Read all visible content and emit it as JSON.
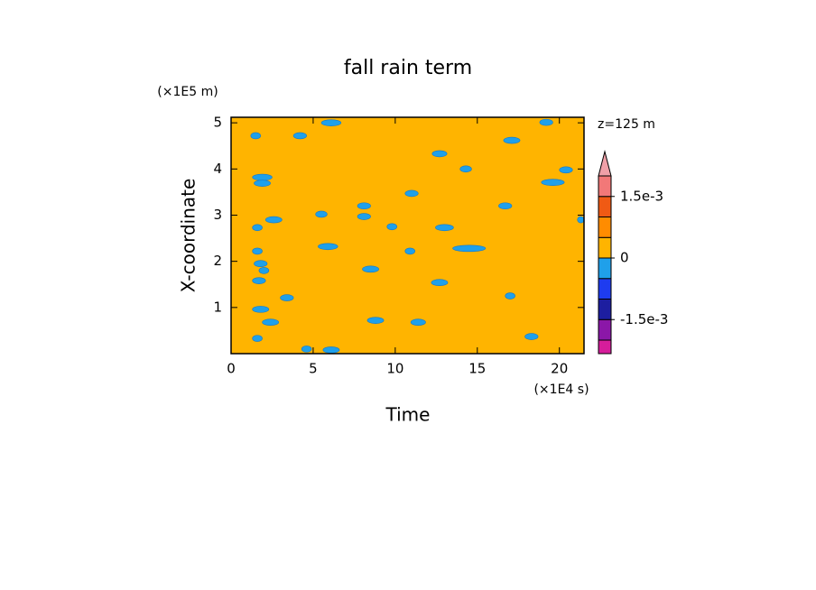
{
  "chart_data": {
    "type": "contour",
    "title": "fall rain term",
    "xlabel": "Time",
    "ylabel": "X-coordinate",
    "x_unit": "(×1E4 s)",
    "y_unit": "(×1E5 m)",
    "annotation": "z=125 m",
    "xlim": [
      0,
      21.5
    ],
    "ylim": [
      0,
      5.12
    ],
    "xticks": [
      0,
      5,
      10,
      15,
      20
    ],
    "yticks": [
      1,
      2,
      3,
      4,
      5
    ],
    "background_level": 5,
    "patch_level": 4,
    "patches": {
      "x": [
        1.5,
        1.9,
        1.9,
        1.6,
        2.6,
        1.6,
        1.8,
        2.0,
        1.7,
        3.4,
        1.8,
        2.4,
        1.6,
        4.2,
        6.1,
        5.5,
        5.9,
        4.6,
        6.1,
        8.1,
        8.1,
        8.5,
        8.8,
        9.8,
        11.0,
        11.4,
        12.7,
        13.0,
        12.7,
        14.3,
        14.5,
        17.1,
        16.7,
        17.0,
        18.3,
        19.2,
        19.6,
        20.4,
        21.3,
        10.9
      ],
      "y": [
        4.72,
        3.82,
        3.69,
        2.73,
        2.9,
        2.22,
        1.95,
        1.8,
        1.58,
        1.21,
        0.96,
        0.68,
        0.33,
        4.72,
        5.0,
        3.02,
        2.32,
        0.1,
        0.08,
        3.2,
        2.97,
        1.83,
        0.72,
        2.75,
        3.47,
        0.68,
        4.33,
        2.73,
        1.54,
        4.0,
        2.28,
        4.62,
        3.2,
        1.25,
        0.37,
        5.01,
        3.71,
        3.98,
        2.9,
        2.22
      ],
      "width": [
        0.6,
        1.2,
        1.0,
        0.6,
        1.0,
        0.6,
        0.8,
        0.6,
        0.8,
        0.8,
        1.0,
        1.0,
        0.6,
        0.8,
        1.2,
        0.7,
        1.2,
        0.6,
        1.0,
        0.8,
        0.8,
        1.0,
        1.0,
        0.6,
        0.8,
        0.9,
        0.9,
        1.1,
        1.0,
        0.7,
        2.0,
        1.0,
        0.8,
        0.6,
        0.8,
        0.8,
        1.4,
        0.8,
        0.4,
        0.6
      ]
    },
    "colorbar": {
      "levels": [
        -0.002,
        -0.0015,
        -0.001,
        -0.0005,
        0,
        0.0005,
        0.001,
        0.0015,
        0.002
      ],
      "colors": [
        "#d61d9b",
        "#8b17a8",
        "#1d1ea0",
        "#1e3cf0",
        "#1fa0ea",
        "#ffb400",
        "#ff8c00",
        "#f05a14",
        "#f27878",
        "#f0a0a8"
      ],
      "ticks": [
        {
          "value": 0.0015,
          "label": "1.5e-3"
        },
        0,
        {
          "value": -0.0015,
          "label": "-1.5e-3"
        }
      ]
    }
  }
}
